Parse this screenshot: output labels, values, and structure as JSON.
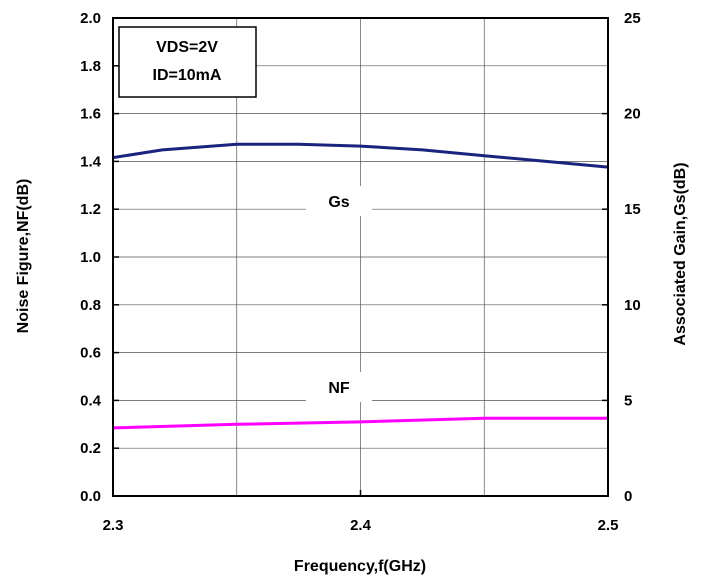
{
  "chart_data": {
    "type": "line",
    "title": "",
    "xlabel": "Frequency,f(GHz)",
    "ylabel_left": "Noise Figure,NF(dB)",
    "ylabel_right": "Associated Gain,Gs(dB)",
    "xlim": [
      2.3,
      2.5
    ],
    "ylim_left": [
      0.0,
      2.0
    ],
    "ylim_right": [
      0,
      25
    ],
    "x_ticks": [
      "2.3",
      "2.4",
      "2.5"
    ],
    "y_left_ticks": [
      "0.0",
      "0.2",
      "0.4",
      "0.6",
      "0.8",
      "1.0",
      "1.2",
      "1.4",
      "1.6",
      "1.8",
      "2.0"
    ],
    "y_right_ticks": [
      "0",
      "5",
      "10",
      "15",
      "20",
      "25"
    ],
    "grid": true,
    "conditions": [
      "VDS=2V",
      "ID=10mA"
    ],
    "series": [
      {
        "name": "Gs",
        "axis": "right",
        "color": "#1a237e",
        "x": [
          2.3,
          2.32,
          2.34,
          2.35,
          2.375,
          2.4,
          2.425,
          2.45,
          2.475,
          2.5
        ],
        "y": [
          17.7,
          18.1,
          18.3,
          18.4,
          18.4,
          18.3,
          18.1,
          17.8,
          17.5,
          17.2
        ]
      },
      {
        "name": "NF",
        "axis": "left",
        "color": "#ff00ff",
        "x": [
          2.3,
          2.35,
          2.4,
          2.45,
          2.5
        ],
        "y": [
          0.285,
          0.3,
          0.31,
          0.325,
          0.325
        ]
      }
    ]
  }
}
